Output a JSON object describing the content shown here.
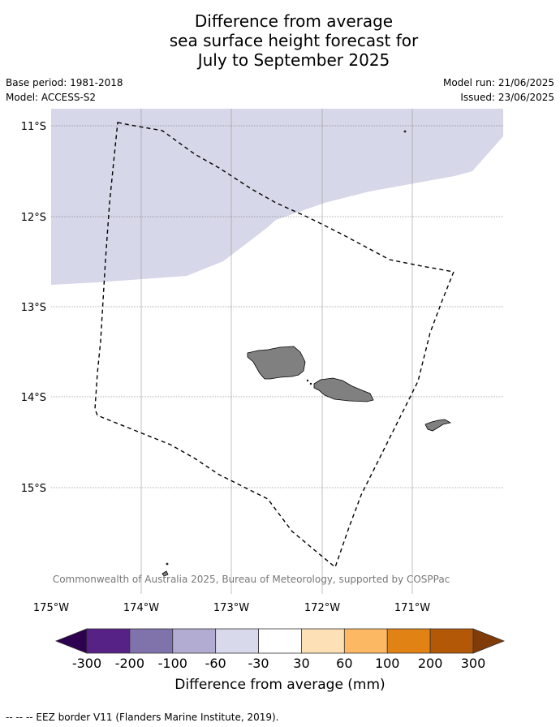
{
  "title": {
    "line1": "Difference from average",
    "line2": "sea surface height forecast for",
    "line3": "July to September 2025"
  },
  "meta": {
    "base_period": "Base period: 1981-2018",
    "model": "Model: ACCESS-S2",
    "model_run": "Model run: 21/06/2025",
    "issued": "Issued: 23/06/2025"
  },
  "map": {
    "lat_labels": [
      "11°S",
      "12°S",
      "13°S",
      "14°S",
      "15°S"
    ],
    "lon_labels": [
      "175°W",
      "174°W",
      "173°W",
      "172°W",
      "171°W"
    ],
    "copyright": "© Commonwealth of Australia 2025, Bureau of Meteorology, supported by COSPPac",
    "anomaly_region_color": "#d6d7e8",
    "land_color": "#808080"
  },
  "colorbar": {
    "title": "Difference from average (mm)",
    "ticks": [
      "-300",
      "-200",
      "-100",
      "-60",
      "-30",
      "30",
      "60",
      "100",
      "200",
      "300"
    ],
    "colors": [
      "#2d0050",
      "#572286",
      "#8073ac",
      "#b2abd2",
      "#d8daeb",
      "#ffffff",
      "#fee0b6",
      "#fdb863",
      "#e08214",
      "#b35806",
      "#7f3b08"
    ]
  },
  "footer": {
    "legend": "--  --  -- EEZ border V11 (Flanders Marine Institute, 2019)."
  }
}
